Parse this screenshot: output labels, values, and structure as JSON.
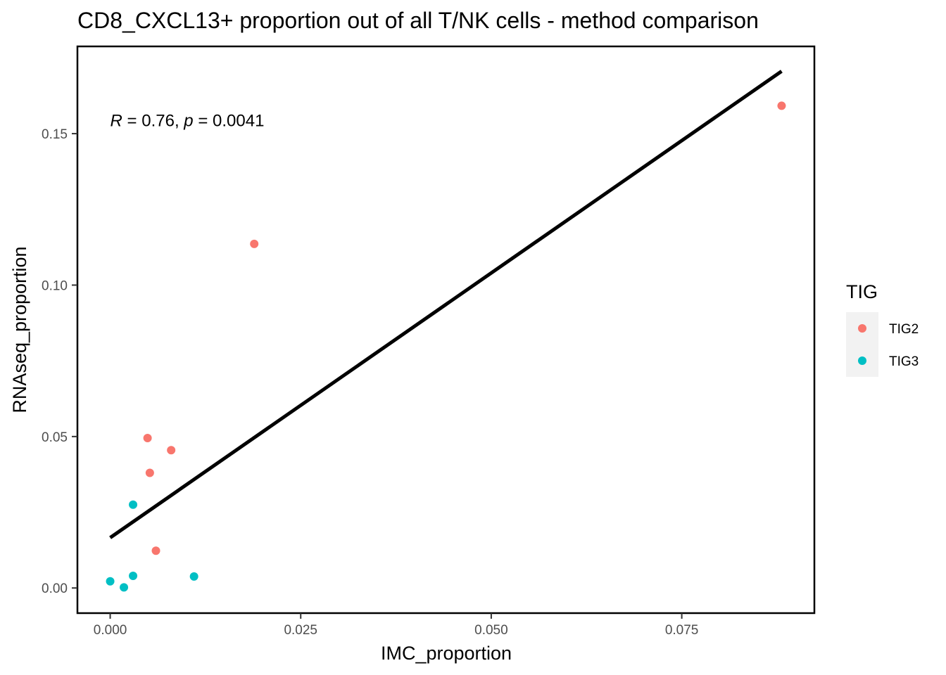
{
  "chart_data": {
    "type": "scatter",
    "title": "CD8_CXCL13+ proportion out of all T/NK cells - method comparison",
    "xlabel": "IMC_proportion",
    "ylabel": "RNAseq_proportion",
    "xlim": [
      -0.0043,
      0.0924
    ],
    "ylim": [
      -0.0083,
      0.1788
    ],
    "x_ticks": [
      0.0,
      0.025,
      0.05,
      0.075
    ],
    "x_tick_labels": [
      "0.000",
      "0.025",
      "0.050",
      "0.075"
    ],
    "y_ticks": [
      0.0,
      0.05,
      0.1,
      0.15
    ],
    "y_tick_labels": [
      "0.00",
      "0.05",
      "0.10",
      "0.15"
    ],
    "grid": false,
    "legend": {
      "title": "TIG",
      "position": "right"
    },
    "series": [
      {
        "name": "TIG2",
        "color": "#F8766D",
        "points": [
          {
            "x": 0.0881,
            "y": 0.1592
          },
          {
            "x": 0.0189,
            "y": 0.1136
          },
          {
            "x": 0.0049,
            "y": 0.0495
          },
          {
            "x": 0.008,
            "y": 0.0455
          },
          {
            "x": 0.0052,
            "y": 0.038
          },
          {
            "x": 0.006,
            "y": 0.0123
          }
        ]
      },
      {
        "name": "TIG3",
        "color": "#00BFC4",
        "points": [
          {
            "x": 0.003,
            "y": 0.0275
          },
          {
            "x": 0.0,
            "y": 0.0022
          },
          {
            "x": 0.0018,
            "y": 0.0002
          },
          {
            "x": 0.003,
            "y": 0.004
          },
          {
            "x": 0.011,
            "y": 0.0038
          }
        ]
      }
    ],
    "fit_line": {
      "x": [
        0.0,
        0.0881
      ],
      "y": [
        0.0166,
        0.1706
      ],
      "color": "#000000"
    },
    "annotation": {
      "r_symbol": "R",
      "r_text": " = 0.76, ",
      "p_symbol": "p",
      "p_text": " = 0.0041",
      "x": 0.0,
      "y": 0.1525
    }
  }
}
